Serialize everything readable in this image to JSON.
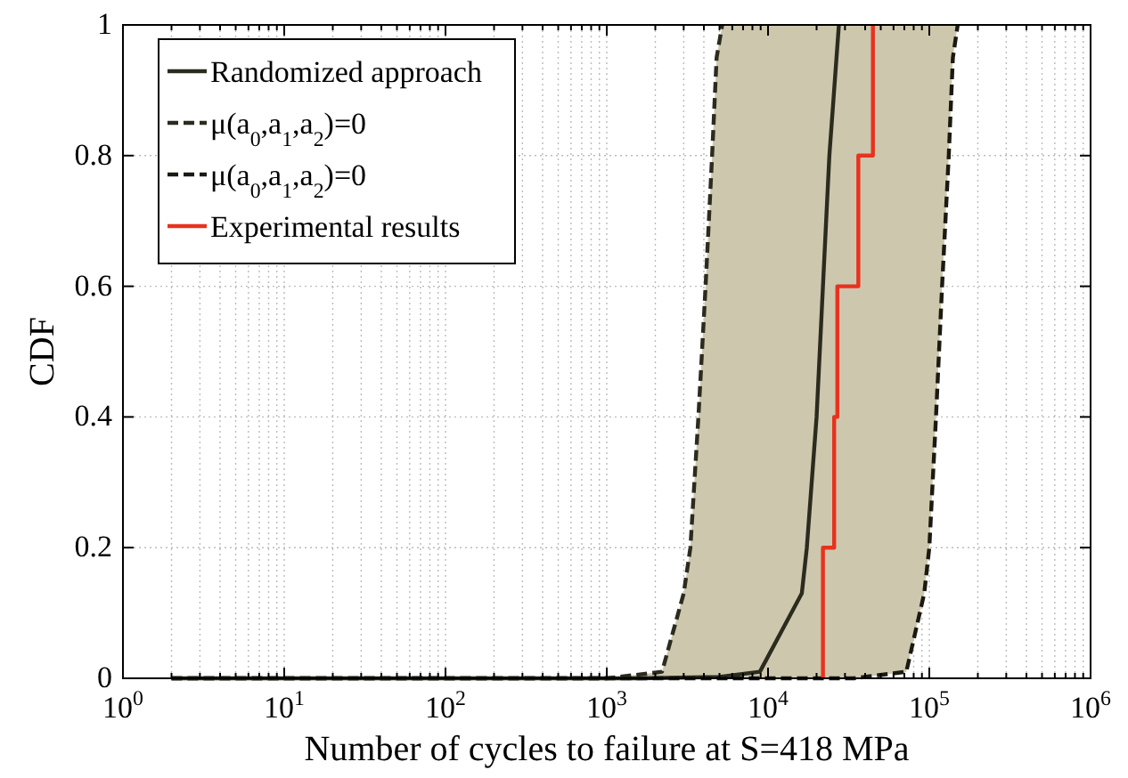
{
  "chart_data": {
    "type": "line",
    "xlabel": "Number of cycles to failure at S=418 MPa",
    "ylabel": "CDF",
    "log": "x",
    "grid": true,
    "legend": "top left",
    "xlim": [
      1,
      1000000
    ],
    "ylim": [
      0,
      1
    ],
    "xticks": [
      {
        "value": 1,
        "label": "10$^{0}$"
      },
      {
        "value": 2,
        "label": null
      },
      {
        "value": 3,
        "label": null
      },
      {
        "value": 4,
        "label": null
      },
      {
        "value": 5,
        "label": null
      },
      {
        "value": 6,
        "label": null
      },
      {
        "value": 7,
        "label": null
      },
      {
        "value": 8,
        "label": null
      },
      {
        "value": 9,
        "label": null
      },
      {
        "value": 10,
        "label": "10$^{1}$"
      },
      {
        "value": 20,
        "label": null
      },
      {
        "value": 30,
        "label": null
      },
      {
        "value": 40,
        "label": null
      },
      {
        "value": 50,
        "label": null
      },
      {
        "value": 60,
        "label": null
      },
      {
        "value": 70,
        "label": null
      },
      {
        "value": 80,
        "label": null
      },
      {
        "value": 90,
        "label": null
      },
      {
        "value": 100,
        "label": "10$^{2}$"
      },
      {
        "value": 200,
        "label": null
      },
      {
        "value": 300,
        "label": null
      },
      {
        "value": 400,
        "label": null
      },
      {
        "value": 500,
        "label": null
      },
      {
        "value": 600,
        "label": null
      },
      {
        "value": 700,
        "label": null
      },
      {
        "value": 800,
        "label": null
      },
      {
        "value": 900,
        "label": null
      },
      {
        "value": 1000,
        "label": "10$^{3}$"
      },
      {
        "value": 2000,
        "label": null
      },
      {
        "value": 3000,
        "label": null
      },
      {
        "value": 4000,
        "label": null
      },
      {
        "value": 5000,
        "label": null
      },
      {
        "value": 6000,
        "label": null
      },
      {
        "value": 7000,
        "label": null
      },
      {
        "value": 8000,
        "label": null
      },
      {
        "value": 9000,
        "label": null
      },
      {
        "value": 10000,
        "label": "10$^{4}$"
      },
      {
        "value": 20000,
        "label": null
      },
      {
        "value": 30000,
        "label": null
      },
      {
        "value": 40000,
        "label": null
      },
      {
        "value": 50000,
        "label": null
      },
      {
        "value": 60000,
        "label": null
      },
      {
        "value": 70000,
        "label": null
      },
      {
        "value": 80000,
        "label": null
      },
      {
        "value": 90000,
        "label": null
      },
      {
        "value": 100000,
        "label": "10$^{5}$"
      },
      {
        "value": 200000,
        "label": null
      },
      {
        "value": 300000,
        "label": null
      },
      {
        "value": 400000,
        "label": null
      },
      {
        "value": 500000,
        "label": null
      },
      {
        "value": 600000,
        "label": null
      },
      {
        "value": 700000,
        "label": null
      },
      {
        "value": 800000,
        "label": null
      },
      {
        "value": 900000,
        "label": null
      },
      {
        "value": 1000000,
        "label": "10$^{6}$"
      }
    ],
    "yticks": [
      0,
      0.2,
      0.4,
      0.6,
      0.8,
      1
    ],
    "series": [
      {
        "type": "area",
        "color": "#cdc7ae",
        "x": [
          1000,
          2200,
          3000,
          3300,
          3700,
          4100,
          4500,
          4800,
          5200,
          150000,
          140000,
          132000,
          120000,
          110000,
          100000,
          93000,
          72000,
          34000
        ],
        "values": [
          0,
          0.01,
          0.13,
          0.2,
          0.4,
          0.6,
          0.8,
          0.95,
          1,
          1,
          0.95,
          0.8,
          0.6,
          0.4,
          0.2,
          0.13,
          0.01,
          0
        ]
      },
      {
        "name": "Randomized approach",
        "color": "#2b2b1e",
        "line_style": "solid",
        "x": [
          2,
          1600,
          5000,
          8900,
          16200,
          17400,
          20000,
          21900,
          24000,
          27500
        ],
        "values": [
          0,
          0,
          0.002,
          0.01,
          0.13,
          0.2,
          0.4,
          0.6,
          0.8,
          1
        ]
      },
      {
        "name": "μ(a$_{0}$,a$_{1}$,a$_{2}$)=0",
        "color": "#2b2b1e",
        "line_style": "dashed",
        "x": [
          2,
          1000,
          2200,
          3000,
          3300,
          3700,
          4100,
          4500,
          4800,
          5200
        ],
        "values": [
          0,
          0,
          0.01,
          0.13,
          0.2,
          0.4,
          0.6,
          0.8,
          0.95,
          1
        ]
      },
      {
        "name": "μ(a$_{0}$,a$_{1}$,a$_{2}$)=0",
        "color": "#1a1a12",
        "line_style": "dashed",
        "x": [
          2,
          34000,
          72000,
          93000,
          100000,
          110000,
          120000,
          132000,
          140000,
          150000
        ],
        "values": [
          0,
          0,
          0.01,
          0.13,
          0.2,
          0.4,
          0.6,
          0.8,
          0.95,
          1
        ]
      },
      {
        "name": "Experimental results",
        "color": "#e8321e",
        "line_style": "solid",
        "x": [
          21900,
          21900,
          25700,
          25700,
          26900,
          26900,
          36300,
          36300,
          44700,
          44700
        ],
        "values": [
          0,
          0.2,
          0.2,
          0.4,
          0.4,
          0.6,
          0.6,
          0.8,
          0.8,
          1
        ]
      }
    ]
  }
}
